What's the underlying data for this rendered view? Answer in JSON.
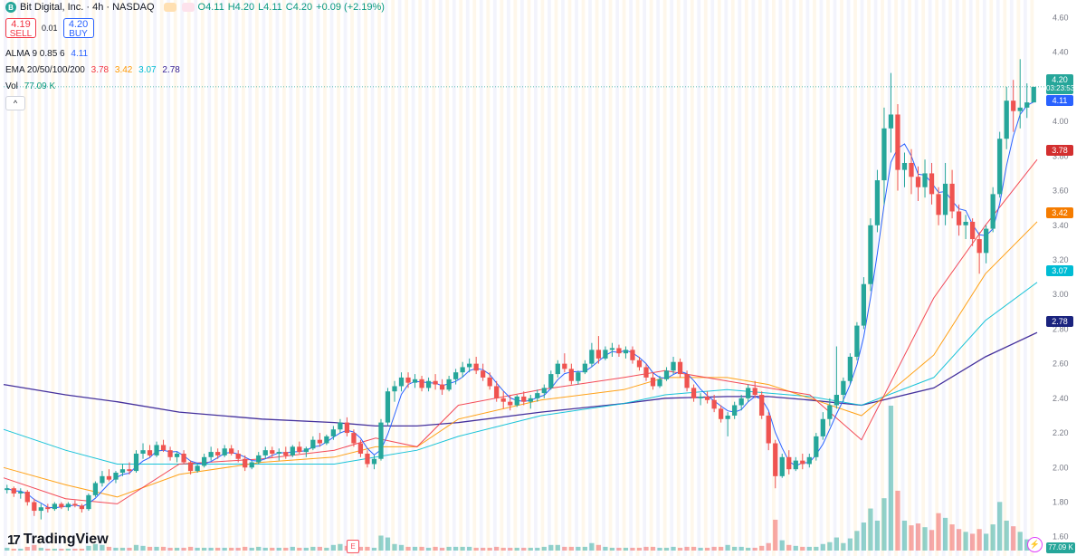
{
  "header": {
    "symbol": "Bit Digital, Inc. · 4h · NASDAQ",
    "logo_letter": "B",
    "open": "O4.11",
    "high": "H4.20",
    "low": "L4.11",
    "close": "C4.20",
    "change": "+0.09 (+2.19%)"
  },
  "trade": {
    "sell_price": "4.19",
    "sell_label": "SELL",
    "spread": "0.01",
    "buy_price": "4.20",
    "buy_label": "BUY"
  },
  "indicators": {
    "alma_label": "ALMA 9 0.85 6",
    "alma_value": "4.11",
    "ema_label": "EMA 20/50/100/200",
    "ema20": "3.78",
    "ema50": "3.42",
    "ema100": "3.07",
    "ema200": "2.78",
    "vol_label": "Vol",
    "vol_value": "77.09 K"
  },
  "collapse_glyph": "^",
  "branding": {
    "name": "TradingView"
  },
  "earnings_marker": "E",
  "axis_tags": {
    "last_price": "4.20",
    "countdown": "03:23:53",
    "alma": "4.11",
    "ema20": "3.78",
    "ema50": "3.42",
    "ema100": "3.07",
    "ema200": "2.78",
    "volume": "77.09 K"
  },
  "colors": {
    "up": "#26a69a",
    "down": "#ef5350",
    "alma": "#2962ff",
    "ema20": "#f23645",
    "ema50": "#ff9800",
    "ema100": "#00bcd4",
    "ema200": "#311b92",
    "alma_tag": "#2962ff",
    "ema20_tag": "#d32f2f",
    "ema50_tag": "#f57c00",
    "ema100_tag": "#00bcd4",
    "ema200_tag": "#1a237e"
  },
  "chart_data": {
    "type": "candlestick",
    "y_ticks": [
      "4.60",
      "4.40",
      "4.20",
      "4.00",
      "3.80",
      "3.60",
      "3.40",
      "3.20",
      "3.00",
      "2.80",
      "2.60",
      "2.40",
      "2.20",
      "2.00",
      "1.80",
      "1.60"
    ],
    "ylim": [
      1.52,
      4.66
    ],
    "candles": [
      [
        1.87,
        1.9,
        1.85,
        1.88
      ],
      [
        1.88,
        1.89,
        1.83,
        1.85
      ],
      [
        1.85,
        1.88,
        1.82,
        1.86
      ],
      [
        1.86,
        1.87,
        1.78,
        1.8
      ],
      [
        1.8,
        1.82,
        1.72,
        1.75
      ],
      [
        1.75,
        1.79,
        1.7,
        1.77
      ],
      [
        1.77,
        1.79,
        1.74,
        1.76
      ],
      [
        1.76,
        1.8,
        1.75,
        1.79
      ],
      [
        1.79,
        1.8,
        1.76,
        1.77
      ],
      [
        1.77,
        1.8,
        1.75,
        1.79
      ],
      [
        1.79,
        1.81,
        1.77,
        1.78
      ],
      [
        1.78,
        1.79,
        1.74,
        1.76
      ],
      [
        1.76,
        1.85,
        1.75,
        1.84
      ],
      [
        1.84,
        1.92,
        1.83,
        1.91
      ],
      [
        1.91,
        1.98,
        1.89,
        1.95
      ],
      [
        1.95,
        1.99,
        1.92,
        1.93
      ],
      [
        1.93,
        1.98,
        1.91,
        1.97
      ],
      [
        1.97,
        2.02,
        1.95,
        1.99
      ],
      [
        1.99,
        2.03,
        1.96,
        1.98
      ],
      [
        1.98,
        2.1,
        1.97,
        2.08
      ],
      [
        2.08,
        2.14,
        2.05,
        2.1
      ],
      [
        2.1,
        2.13,
        2.06,
        2.07
      ],
      [
        2.07,
        2.15,
        2.06,
        2.13
      ],
      [
        2.13,
        2.16,
        2.09,
        2.1
      ],
      [
        2.1,
        2.12,
        2.04,
        2.06
      ],
      [
        2.06,
        2.09,
        2.03,
        2.08
      ],
      [
        2.08,
        2.1,
        2.02,
        2.03
      ],
      [
        2.03,
        2.04,
        1.96,
        1.98
      ],
      [
        1.98,
        2.02,
        1.97,
        2.01
      ],
      [
        2.01,
        2.08,
        2.0,
        2.06
      ],
      [
        2.06,
        2.12,
        2.04,
        2.09
      ],
      [
        2.09,
        2.11,
        2.05,
        2.07
      ],
      [
        2.07,
        2.13,
        2.06,
        2.11
      ],
      [
        2.11,
        2.13,
        2.07,
        2.08
      ],
      [
        2.08,
        2.1,
        2.03,
        2.05
      ],
      [
        2.05,
        2.07,
        1.98,
        2.0
      ],
      [
        2.0,
        2.04,
        1.99,
        2.03
      ],
      [
        2.03,
        2.09,
        2.02,
        2.07
      ],
      [
        2.07,
        2.12,
        2.05,
        2.1
      ],
      [
        2.1,
        2.12,
        2.06,
        2.08
      ],
      [
        2.08,
        2.11,
        2.04,
        2.09
      ],
      [
        2.09,
        2.12,
        2.05,
        2.07
      ],
      [
        2.07,
        2.13,
        2.06,
        2.12
      ],
      [
        2.12,
        2.15,
        2.08,
        2.09
      ],
      [
        2.09,
        2.12,
        2.06,
        2.11
      ],
      [
        2.11,
        2.18,
        2.1,
        2.16
      ],
      [
        2.16,
        2.2,
        2.12,
        2.14
      ],
      [
        2.14,
        2.19,
        2.13,
        2.18
      ],
      [
        2.18,
        2.24,
        2.16,
        2.22
      ],
      [
        2.22,
        2.28,
        2.2,
        2.26
      ],
      [
        2.26,
        2.29,
        2.18,
        2.2
      ],
      [
        2.2,
        2.22,
        2.12,
        2.14
      ],
      [
        2.14,
        2.16,
        2.06,
        2.08
      ],
      [
        2.08,
        2.1,
        2.0,
        2.02
      ],
      [
        2.02,
        2.07,
        1.99,
        2.05
      ],
      [
        2.05,
        2.28,
        2.04,
        2.26
      ],
      [
        2.26,
        2.46,
        2.24,
        2.44
      ],
      [
        2.44,
        2.5,
        2.38,
        2.47
      ],
      [
        2.47,
        2.55,
        2.44,
        2.52
      ],
      [
        2.52,
        2.55,
        2.46,
        2.49
      ],
      [
        2.49,
        2.54,
        2.46,
        2.51
      ],
      [
        2.51,
        2.53,
        2.44,
        2.46
      ],
      [
        2.46,
        2.52,
        2.44,
        2.5
      ],
      [
        2.5,
        2.54,
        2.45,
        2.48
      ],
      [
        2.48,
        2.51,
        2.42,
        2.45
      ],
      [
        2.45,
        2.53,
        2.44,
        2.51
      ],
      [
        2.51,
        2.57,
        2.48,
        2.55
      ],
      [
        2.55,
        2.61,
        2.52,
        2.58
      ],
      [
        2.58,
        2.63,
        2.55,
        2.6
      ],
      [
        2.6,
        2.64,
        2.54,
        2.56
      ],
      [
        2.56,
        2.6,
        2.5,
        2.52
      ],
      [
        2.52,
        2.55,
        2.45,
        2.47
      ],
      [
        2.47,
        2.5,
        2.38,
        2.4
      ],
      [
        2.4,
        2.44,
        2.34,
        2.38
      ],
      [
        2.38,
        2.42,
        2.33,
        2.36
      ],
      [
        2.36,
        2.42,
        2.35,
        2.41
      ],
      [
        2.41,
        2.44,
        2.36,
        2.38
      ],
      [
        2.38,
        2.42,
        2.34,
        2.4
      ],
      [
        2.4,
        2.45,
        2.38,
        2.43
      ],
      [
        2.43,
        2.48,
        2.4,
        2.46
      ],
      [
        2.46,
        2.56,
        2.45,
        2.54
      ],
      [
        2.54,
        2.62,
        2.52,
        2.6
      ],
      [
        2.6,
        2.66,
        2.55,
        2.57
      ],
      [
        2.57,
        2.6,
        2.48,
        2.5
      ],
      [
        2.5,
        2.56,
        2.48,
        2.55
      ],
      [
        2.55,
        2.62,
        2.54,
        2.6
      ],
      [
        2.6,
        2.72,
        2.58,
        2.68
      ],
      [
        2.68,
        2.76,
        2.6,
        2.63
      ],
      [
        2.63,
        2.7,
        2.62,
        2.68
      ],
      [
        2.68,
        2.72,
        2.64,
        2.69
      ],
      [
        2.69,
        2.71,
        2.64,
        2.66
      ],
      [
        2.66,
        2.7,
        2.63,
        2.68
      ],
      [
        2.68,
        2.7,
        2.6,
        2.62
      ],
      [
        2.62,
        2.64,
        2.56,
        2.58
      ],
      [
        2.58,
        2.6,
        2.5,
        2.52
      ],
      [
        2.52,
        2.55,
        2.45,
        2.47
      ],
      [
        2.47,
        2.53,
        2.46,
        2.51
      ],
      [
        2.51,
        2.58,
        2.5,
        2.56
      ],
      [
        2.56,
        2.64,
        2.54,
        2.61
      ],
      [
        2.61,
        2.63,
        2.52,
        2.54
      ],
      [
        2.54,
        2.56,
        2.44,
        2.46
      ],
      [
        2.46,
        2.48,
        2.38,
        2.4
      ],
      [
        2.4,
        2.43,
        2.36,
        2.41
      ],
      [
        2.41,
        2.44,
        2.37,
        2.39
      ],
      [
        2.39,
        2.42,
        2.32,
        2.34
      ],
      [
        2.34,
        2.36,
        2.26,
        2.28
      ],
      [
        2.28,
        2.32,
        2.18,
        2.3
      ],
      [
        2.3,
        2.38,
        2.28,
        2.36
      ],
      [
        2.36,
        2.42,
        2.33,
        2.4
      ],
      [
        2.4,
        2.48,
        2.38,
        2.46
      ],
      [
        2.46,
        2.5,
        2.4,
        2.42
      ],
      [
        2.42,
        2.44,
        2.28,
        2.3
      ],
      [
        2.3,
        2.32,
        2.1,
        2.14
      ],
      [
        2.14,
        2.16,
        1.88,
        1.95
      ],
      [
        1.95,
        2.08,
        1.94,
        2.06
      ],
      [
        2.06,
        2.1,
        1.96,
        1.99
      ],
      [
        1.99,
        2.06,
        1.98,
        2.04
      ],
      [
        2.04,
        2.08,
        1.99,
        2.02
      ],
      [
        2.02,
        2.08,
        2.0,
        2.06
      ],
      [
        2.06,
        2.2,
        2.04,
        2.18
      ],
      [
        2.18,
        2.32,
        2.16,
        2.28
      ],
      [
        2.28,
        2.4,
        2.24,
        2.36
      ],
      [
        2.36,
        2.7,
        2.34,
        2.42
      ],
      [
        2.42,
        2.52,
        2.38,
        2.5
      ],
      [
        2.5,
        2.66,
        2.48,
        2.64
      ],
      [
        2.64,
        2.84,
        2.62,
        2.82
      ],
      [
        2.82,
        3.1,
        2.8,
        3.06
      ],
      [
        3.06,
        3.44,
        3.02,
        3.4
      ],
      [
        3.4,
        3.72,
        3.36,
        3.66
      ],
      [
        3.66,
        4.08,
        3.52,
        3.96
      ],
      [
        3.96,
        4.28,
        3.82,
        4.04
      ],
      [
        4.04,
        4.1,
        3.6,
        3.72
      ],
      [
        3.72,
        3.82,
        3.62,
        3.76
      ],
      [
        3.76,
        3.84,
        3.58,
        3.68
      ],
      [
        3.68,
        3.74,
        3.54,
        3.62
      ],
      [
        3.62,
        3.78,
        3.56,
        3.7
      ],
      [
        3.7,
        3.76,
        3.52,
        3.58
      ],
      [
        3.58,
        3.62,
        3.4,
        3.46
      ],
      [
        3.46,
        3.76,
        3.4,
        3.64
      ],
      [
        3.64,
        3.72,
        3.44,
        3.48
      ],
      [
        3.48,
        3.52,
        3.34,
        3.4
      ],
      [
        3.4,
        3.46,
        3.32,
        3.42
      ],
      [
        3.42,
        3.44,
        3.28,
        3.32
      ],
      [
        3.32,
        3.36,
        3.12,
        3.24
      ],
      [
        3.24,
        3.4,
        3.18,
        3.38
      ],
      [
        3.38,
        3.62,
        3.36,
        3.58
      ],
      [
        3.58,
        3.94,
        3.56,
        3.9
      ],
      [
        3.9,
        4.2,
        3.84,
        4.12
      ],
      [
        4.12,
        4.24,
        3.94,
        4.06
      ],
      [
        4.06,
        4.36,
        3.96,
        4.08
      ],
      [
        4.08,
        4.22,
        4.02,
        4.11
      ],
      [
        4.11,
        4.2,
        4.11,
        4.2
      ]
    ],
    "volumes": [
      3,
      2,
      2,
      4,
      6,
      3,
      2,
      2,
      2,
      2,
      2,
      2,
      5,
      7,
      6,
      4,
      3,
      3,
      3,
      6,
      5,
      4,
      4,
      4,
      3,
      3,
      3,
      4,
      3,
      3,
      3,
      3,
      3,
      3,
      3,
      4,
      3,
      4,
      3,
      3,
      3,
      3,
      4,
      3,
      3,
      4,
      4,
      3,
      6,
      7,
      5,
      4,
      4,
      4,
      3,
      16,
      14,
      7,
      6,
      4,
      4,
      4,
      3,
      4,
      3,
      4,
      4,
      4,
      4,
      3,
      3,
      3,
      4,
      3,
      3,
      3,
      3,
      3,
      3,
      4,
      6,
      6,
      4,
      4,
      4,
      4,
      8,
      6,
      4,
      3,
      3,
      3,
      3,
      3,
      4,
      4,
      3,
      3,
      4,
      3,
      4,
      4,
      3,
      3,
      4,
      4,
      6,
      4,
      4,
      3,
      3,
      5,
      8,
      33,
      11,
      6,
      5,
      4,
      4,
      4,
      7,
      9,
      14,
      8,
      13,
      21,
      30,
      45,
      32,
      56,
      155,
      64,
      32,
      27,
      29,
      25,
      22,
      40,
      35,
      28,
      23,
      20,
      18,
      23,
      18,
      28,
      52,
      32,
      26,
      20,
      12,
      10
    ],
    "ema_lines": {
      "ema20": [
        [
          0,
          1.94
        ],
        [
          0.06,
          1.82
        ],
        [
          0.11,
          1.79
        ],
        [
          0.17,
          2.02
        ],
        [
          0.25,
          2.05
        ],
        [
          0.32,
          2.1
        ],
        [
          0.36,
          2.17
        ],
        [
          0.4,
          2.12
        ],
        [
          0.44,
          2.36
        ],
        [
          0.52,
          2.45
        ],
        [
          0.6,
          2.52
        ],
        [
          0.64,
          2.56
        ],
        [
          0.7,
          2.5
        ],
        [
          0.74,
          2.46
        ],
        [
          0.78,
          2.42
        ],
        [
          0.83,
          2.16
        ],
        [
          0.9,
          2.98
        ],
        [
          0.95,
          3.4
        ],
        [
          1.0,
          3.78
        ]
      ],
      "ema50": [
        [
          0,
          2.0
        ],
        [
          0.06,
          1.9
        ],
        [
          0.11,
          1.83
        ],
        [
          0.17,
          1.96
        ],
        [
          0.25,
          2.03
        ],
        [
          0.32,
          2.06
        ],
        [
          0.36,
          2.12
        ],
        [
          0.4,
          2.12
        ],
        [
          0.44,
          2.28
        ],
        [
          0.52,
          2.39
        ],
        [
          0.6,
          2.45
        ],
        [
          0.64,
          2.52
        ],
        [
          0.7,
          2.52
        ],
        [
          0.74,
          2.48
        ],
        [
          0.78,
          2.4
        ],
        [
          0.83,
          2.3
        ],
        [
          0.9,
          2.65
        ],
        [
          0.95,
          3.12
        ],
        [
          1.0,
          3.42
        ]
      ],
      "ema100": [
        [
          0,
          2.22
        ],
        [
          0.06,
          2.1
        ],
        [
          0.11,
          2.02
        ],
        [
          0.17,
          2.02
        ],
        [
          0.25,
          2.02
        ],
        [
          0.32,
          2.02
        ],
        [
          0.36,
          2.06
        ],
        [
          0.4,
          2.1
        ],
        [
          0.44,
          2.18
        ],
        [
          0.52,
          2.3
        ],
        [
          0.6,
          2.37
        ],
        [
          0.64,
          2.42
        ],
        [
          0.7,
          2.45
        ],
        [
          0.74,
          2.43
        ],
        [
          0.78,
          2.41
        ],
        [
          0.83,
          2.36
        ],
        [
          0.9,
          2.52
        ],
        [
          0.95,
          2.85
        ],
        [
          1.0,
          3.07
        ]
      ],
      "ema200": [
        [
          0,
          2.48
        ],
        [
          0.06,
          2.42
        ],
        [
          0.11,
          2.38
        ],
        [
          0.17,
          2.32
        ],
        [
          0.25,
          2.28
        ],
        [
          0.32,
          2.26
        ],
        [
          0.36,
          2.24
        ],
        [
          0.4,
          2.24
        ],
        [
          0.44,
          2.26
        ],
        [
          0.52,
          2.32
        ],
        [
          0.6,
          2.37
        ],
        [
          0.64,
          2.4
        ],
        [
          0.7,
          2.41
        ],
        [
          0.74,
          2.41
        ],
        [
          0.78,
          2.39
        ],
        [
          0.83,
          2.36
        ],
        [
          0.9,
          2.46
        ],
        [
          0.95,
          2.64
        ],
        [
          1.0,
          2.78
        ]
      ]
    }
  }
}
